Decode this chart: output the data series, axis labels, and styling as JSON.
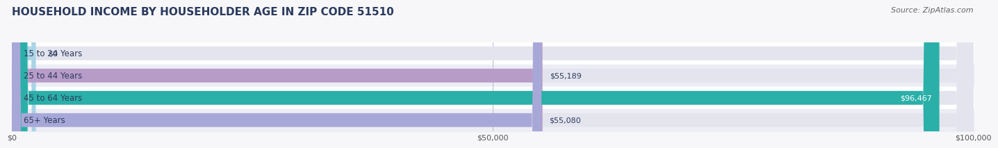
{
  "title": "HOUSEHOLD INCOME BY HOUSEHOLDER AGE IN ZIP CODE 51510",
  "source": "Source: ZipAtlas.com",
  "categories": [
    "15 to 24 Years",
    "25 to 44 Years",
    "45 to 64 Years",
    "65+ Years"
  ],
  "values": [
    0,
    55189,
    96467,
    55080
  ],
  "bar_colors": [
    "#a8d4e6",
    "#b89cc8",
    "#2ab0a8",
    "#a8a8d8"
  ],
  "bar_bg_color": "#e4e4ee",
  "label_colors": [
    "#3a4a6a",
    "#3a4a6a",
    "#ffffff",
    "#3a4a6a"
  ],
  "xlim": [
    0,
    100000
  ],
  "xticks": [
    0,
    50000,
    100000
  ],
  "xtick_labels": [
    "$0",
    "$50,000",
    "$100,000"
  ],
  "title_color": "#2a3a5c",
  "title_fontsize": 11,
  "source_fontsize": 8,
  "source_color": "#666666",
  "ylabel_color": "#2a3a5c",
  "ylabel_fontsize": 8.5,
  "value_fontsize": 8,
  "background_color": "#f7f7fa",
  "bar_height": 0.62,
  "bar_row_bg": [
    "#ffffff",
    "#ededf5",
    "#ffffff",
    "#ededf5"
  ]
}
